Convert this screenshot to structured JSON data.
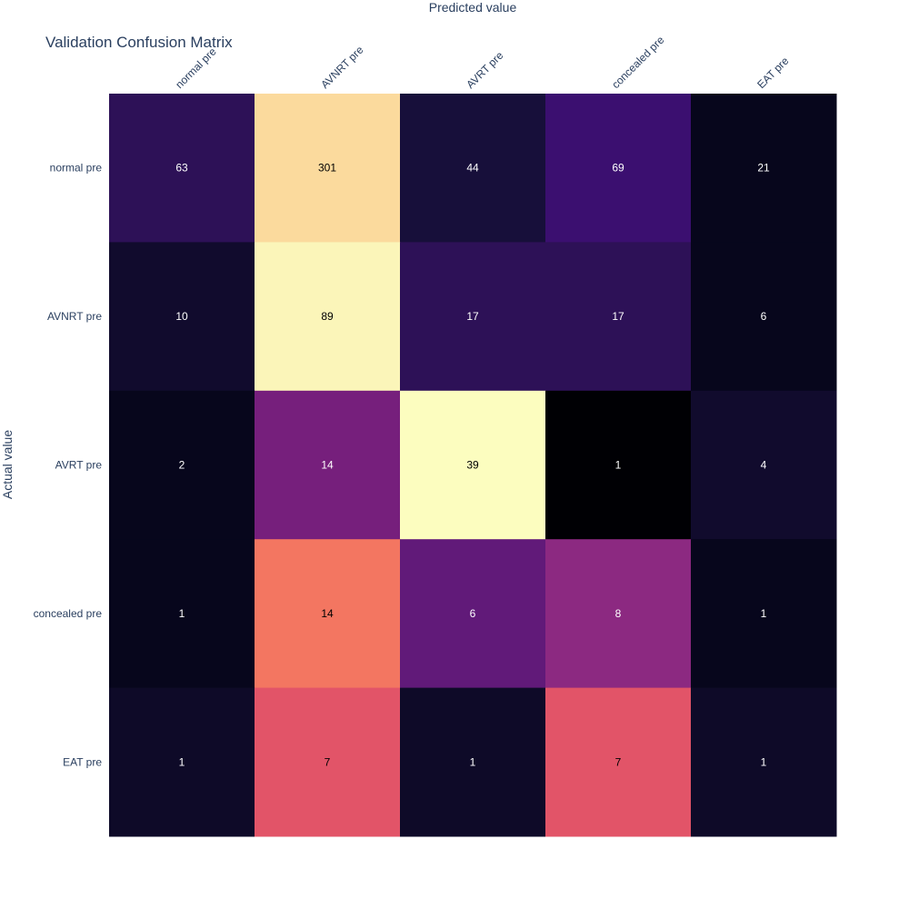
{
  "chart_data": {
    "type": "heatmap",
    "title": "Validation Confusion Matrix",
    "xlabel": "Predicted value",
    "ylabel": "Actual value",
    "x_categories": [
      "normal pre",
      "AVNRT pre",
      "AVRT pre",
      "concealed pre",
      "EAT pre"
    ],
    "y_categories": [
      "normal pre",
      "AVNRT pre",
      "AVRT pre",
      "concealed pre",
      "EAT pre"
    ],
    "values": [
      [
        63,
        301,
        44,
        69,
        21
      ],
      [
        10,
        89,
        17,
        17,
        6
      ],
      [
        2,
        14,
        39,
        1,
        4
      ],
      [
        1,
        14,
        6,
        8,
        1
      ],
      [
        1,
        7,
        1,
        7,
        1
      ]
    ],
    "colors": [
      [
        "#2d1157",
        "#fbda9d",
        "#170f3a",
        "#3b0f70",
        "#07061c"
      ],
      [
        "#110b2d",
        "#fbf5b9",
        "#2d1157",
        "#2d1157",
        "#07061c"
      ],
      [
        "#07061c",
        "#761f7c",
        "#fcfdbf",
        "#000004",
        "#110b2d"
      ],
      [
        "#07061c",
        "#f37661",
        "#611a79",
        "#8c2981",
        "#07061c"
      ],
      [
        "#0e0a28",
        "#e25468",
        "#0e0a28",
        "#e25468",
        "#0e0a28"
      ]
    ],
    "text_colors": [
      [
        "#ffffff",
        "#000000",
        "#ffffff",
        "#ffffff",
        "#ffffff"
      ],
      [
        "#ffffff",
        "#000000",
        "#ffffff",
        "#ffffff",
        "#ffffff"
      ],
      [
        "#ffffff",
        "#ffffff",
        "#000000",
        "#ffffff",
        "#ffffff"
      ],
      [
        "#ffffff",
        "#000000",
        "#ffffff",
        "#ffffff",
        "#ffffff"
      ],
      [
        "#ffffff",
        "#000000",
        "#ffffff",
        "#000000",
        "#ffffff"
      ]
    ],
    "colorscale": "magma",
    "x_axis_side": "top",
    "legend": false,
    "grid": false
  }
}
